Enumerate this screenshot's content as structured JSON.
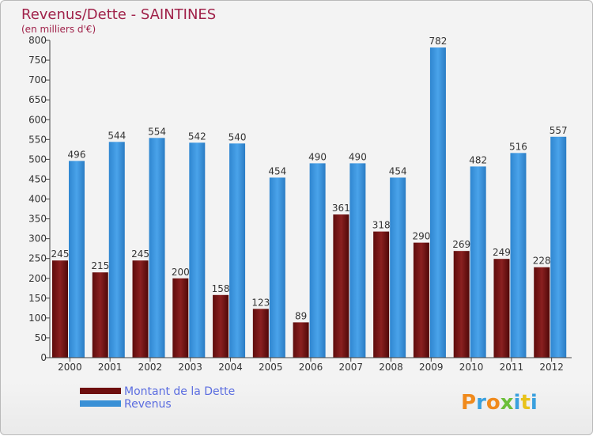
{
  "chart_data": {
    "type": "bar",
    "title": "Revenus/Dette - SAINTINES",
    "subtitle": "(en milliers d'€)",
    "categories": [
      "2000",
      "2001",
      "2002",
      "2003",
      "2004",
      "2005",
      "2006",
      "2007",
      "2008",
      "2009",
      "2010",
      "2011",
      "2012"
    ],
    "series": [
      {
        "name": "Montant de la Dette",
        "color": "#7a1515",
        "values": [
          245,
          215,
          245,
          200,
          158,
          123,
          89,
          361,
          318,
          290,
          269,
          249,
          228
        ]
      },
      {
        "name": "Revenus",
        "color": "#3a90d6",
        "values": [
          496,
          544,
          554,
          542,
          540,
          454,
          490,
          490,
          454,
          782,
          482,
          516,
          557
        ]
      }
    ],
    "ylim": [
      0,
      800
    ],
    "yticks": [
      0,
      50,
      100,
      150,
      200,
      250,
      300,
      350,
      400,
      450,
      500,
      550,
      600,
      650,
      700,
      750,
      800
    ],
    "grid": false,
    "legend_position": "bottom-left"
  },
  "logo": {
    "text": "Proxiti"
  }
}
